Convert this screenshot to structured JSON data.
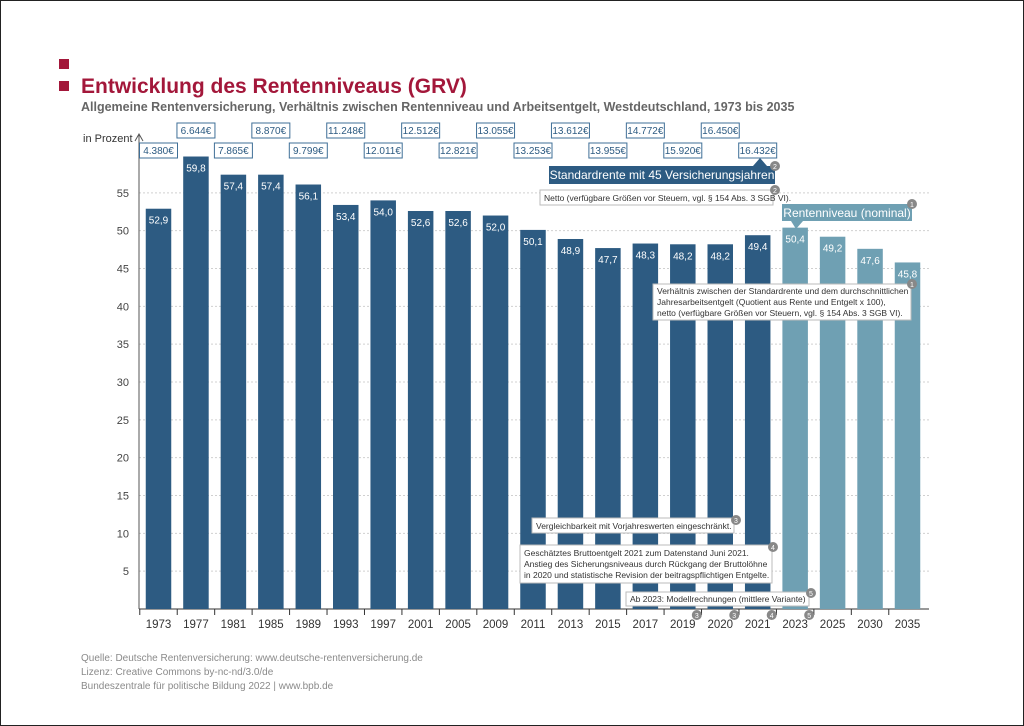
{
  "header": {
    "title": "Entwicklung des Rentenniveaus (GRV)",
    "subtitle": "Allgemeine Rentenversicherung, Verhältnis zwischen Rentenniveau und Arbeitsentgelt, Westdeutschland, 1973 bis 2035"
  },
  "footer": {
    "source": "Quelle: Deutsche Rentenversicherung: www.deutsche-rentenversicherung.de",
    "license": "Lizenz: Creative Commons by-nc-nd/3.0/de",
    "publisher": "Bundeszentrale für politische Bildung 2022 | www.bpb.de"
  },
  "colors": {
    "title": "#a3173a",
    "bar_actual": "#2d5b82",
    "bar_projection": "#6fa0b3"
  },
  "chart_data": {
    "type": "bar",
    "ylabel": "in Prozent",
    "ylim": [
      0,
      60
    ],
    "yticks": [
      5,
      10,
      15,
      20,
      25,
      30,
      35,
      40,
      45,
      50,
      55
    ],
    "grid": true,
    "categories": [
      "1973",
      "1977",
      "1981",
      "1985",
      "1989",
      "1993",
      "1997",
      "2001",
      "2005",
      "2009",
      "2011",
      "2013",
      "2015",
      "2017",
      "2019",
      "2020",
      "2021",
      "2023",
      "2025",
      "2030",
      "2035"
    ],
    "values": [
      52.9,
      59.8,
      57.4,
      57.4,
      56.1,
      53.4,
      54.0,
      52.6,
      52.6,
      52.0,
      50.1,
      48.9,
      47.7,
      48.3,
      48.2,
      48.2,
      49.4,
      50.4,
      49.2,
      47.6,
      45.8
    ],
    "value_labels": [
      "52,9",
      "59,8",
      "57,4",
      "57,4",
      "56,1",
      "53,4",
      "54,0",
      "52,6",
      "52,6",
      "52,0",
      "50,1",
      "48,9",
      "47,7",
      "48,3",
      "48,2",
      "48,2",
      "49,4",
      "50,4",
      "49,2",
      "47,6",
      "45,8"
    ],
    "projected": [
      false,
      false,
      false,
      false,
      false,
      false,
      false,
      false,
      false,
      false,
      false,
      false,
      false,
      false,
      false,
      false,
      false,
      true,
      true,
      true,
      true
    ],
    "footnote_markers": [
      {
        "category": "2019",
        "label": "3"
      },
      {
        "category": "2020",
        "label": "3"
      },
      {
        "category": "2021",
        "label": "4"
      },
      {
        "category": "2023",
        "label": "5"
      }
    ],
    "pensions": [
      {
        "category": "1973",
        "value": "4.380€"
      },
      {
        "category": "1977",
        "value": "6.644€"
      },
      {
        "category": "1981",
        "value": "7.865€"
      },
      {
        "category": "1985",
        "value": "8.870€"
      },
      {
        "category": "1989",
        "value": "9.799€"
      },
      {
        "category": "1993",
        "value": "11.248€"
      },
      {
        "category": "1997",
        "value": "12.011€"
      },
      {
        "category": "2001",
        "value": "12.512€"
      },
      {
        "category": "2005",
        "value": "12.821€"
      },
      {
        "category": "2009",
        "value": "13.055€"
      },
      {
        "category": "2011",
        "value": "13.253€"
      },
      {
        "category": "2013",
        "value": "13.612€"
      },
      {
        "category": "2015",
        "value": "13.955€"
      },
      {
        "category": "2017",
        "value": "14.772€"
      },
      {
        "category": "2019",
        "value": "15.920€"
      },
      {
        "category": "2020",
        "value": "16.450€"
      },
      {
        "category": "2021",
        "value": "16.432€"
      }
    ],
    "annotations": {
      "standardrente": {
        "text": "Standardrente mit 45 Versicherungsjahren",
        "marker": "2"
      },
      "netto": {
        "text": "Netto (verfügbare Größen vor Steuern, vgl. § 154 Abs. 3 SGB VI).",
        "marker": "2"
      },
      "rentenniveau": {
        "text": "Rentenniveau (nominal)",
        "marker": "1"
      },
      "verhaeltnis": {
        "lines": [
          "Verhältnis zwischen der Standardrente und dem durchschnittlichen",
          "Jahresarbeitsentgelt (Quotient aus Rente und Entgelt x 100),",
          "netto (verfügbare Größen vor Steuern, vgl. § 154 Abs. 3 SGB VI)."
        ],
        "marker": "1"
      },
      "vergleichbarkeit": {
        "text": "Vergleichbarkeit mit Vorjahreswerten eingeschränkt.",
        "marker": "3"
      },
      "geschaetzt": {
        "lines": [
          "Geschätztes Bruttoentgelt 2021 zum Datenstand Juni 2021.",
          "Anstieg des Sicherungsniveaus durch Rückgang der Bruttolöhne",
          "in 2020 und statistische Revision der beitragspflichtigen Entgelte."
        ],
        "marker": "4"
      },
      "modell": {
        "text": "Ab 2023: Modellrechnungen (mittlere Variante)",
        "marker": "5"
      }
    }
  }
}
